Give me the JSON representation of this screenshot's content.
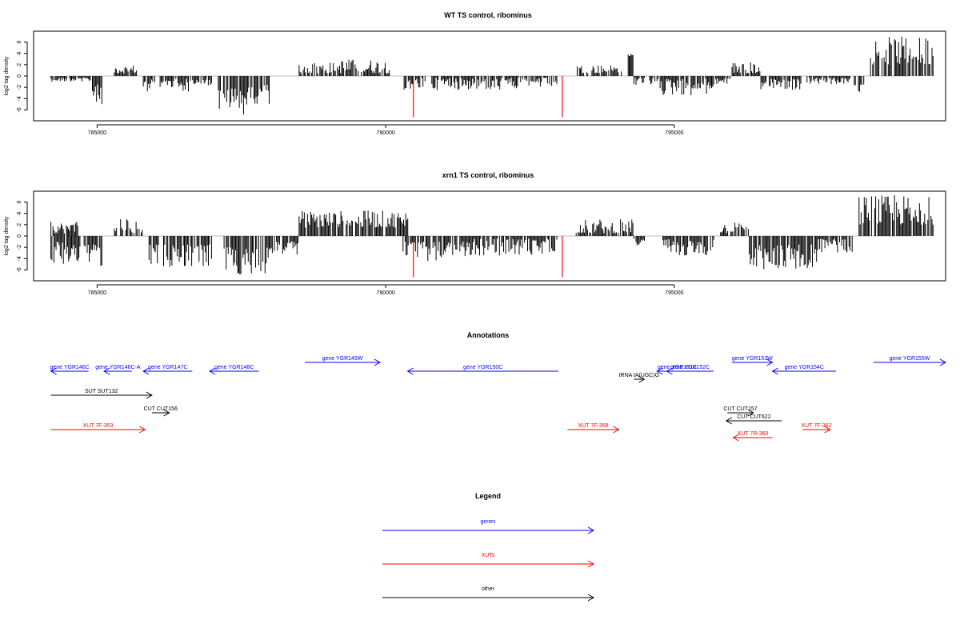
{
  "panel_titles": [
    "WT TS control, ribominus",
    "xrn1 TS control, ribominus"
  ],
  "annotations_title": "Annotations",
  "legend_title": "Legend",
  "chart_data": [
    {
      "type": "bar",
      "title": "WT TS control, ribominus",
      "ylabel": "log2 tag density",
      "xlabel": "",
      "xlim": [
        783900,
        799700
      ],
      "ylim": [
        -7.5,
        7.5
      ],
      "xticks": [
        785000,
        790000,
        795000
      ],
      "yticks": [
        6,
        4,
        2,
        0,
        -2,
        -4,
        -6
      ],
      "baseline_color": "#bbbbbb",
      "bar_color": "#000000",
      "marker_color": "#ff0000",
      "markers": [
        {
          "x": 790480,
          "y": -7.3
        },
        {
          "x": 793060,
          "y": -7.3
        }
      ],
      "segments": [
        {
          "start": 784200,
          "end": 784900,
          "min": 0.3,
          "max": 1.0,
          "sign": -1
        },
        {
          "start": 784900,
          "end": 785100,
          "min": 1.5,
          "max": 5.0,
          "sign": -1
        },
        {
          "start": 785300,
          "end": 785700,
          "min": 0.5,
          "max": 2.0,
          "sign": 1
        },
        {
          "start": 785800,
          "end": 786600,
          "min": 0.5,
          "max": 2.8,
          "sign": -1
        },
        {
          "start": 786600,
          "end": 787000,
          "min": 0.5,
          "max": 1.8,
          "sign": -1
        },
        {
          "start": 787100,
          "end": 787700,
          "min": 2.0,
          "max": 7.0,
          "sign": -1
        },
        {
          "start": 787700,
          "end": 788000,
          "min": 1.5,
          "max": 5.0,
          "sign": -1
        },
        {
          "start": 788500,
          "end": 789200,
          "min": 0.5,
          "max": 2.5,
          "sign": 1
        },
        {
          "start": 789200,
          "end": 790100,
          "min": 0.5,
          "max": 3.0,
          "sign": 1
        },
        {
          "start": 790300,
          "end": 790700,
          "min": 0.3,
          "max": 2.5,
          "sign": -1
        },
        {
          "start": 790800,
          "end": 792500,
          "min": 0.3,
          "max": 2.5,
          "sign": -1
        },
        {
          "start": 792500,
          "end": 793000,
          "min": 0.3,
          "max": 2.0,
          "sign": -1
        },
        {
          "start": 793300,
          "end": 794100,
          "min": 0.5,
          "max": 2.0,
          "sign": 1
        },
        {
          "start": 794200,
          "end": 794300,
          "min": 3.5,
          "max": 3.9,
          "sign": 1
        },
        {
          "start": 794300,
          "end": 794700,
          "min": 0.3,
          "max": 2.0,
          "sign": -1
        },
        {
          "start": 794700,
          "end": 795700,
          "min": 0.5,
          "max": 3.5,
          "sign": -1
        },
        {
          "start": 795700,
          "end": 796000,
          "min": 0.3,
          "max": 1.5,
          "sign": -1
        },
        {
          "start": 796000,
          "end": 796500,
          "min": 0.5,
          "max": 2.5,
          "sign": 1
        },
        {
          "start": 796500,
          "end": 797300,
          "min": 0.5,
          "max": 2.5,
          "sign": -1
        },
        {
          "start": 797300,
          "end": 798100,
          "min": 0.3,
          "max": 1.5,
          "sign": -1
        },
        {
          "start": 798100,
          "end": 798300,
          "min": 1.5,
          "max": 3.0,
          "sign": -1
        },
        {
          "start": 798400,
          "end": 799500,
          "min": 2.0,
          "max": 7.0,
          "sign": 1
        }
      ]
    },
    {
      "type": "bar",
      "title": "xrn1 TS control, ribominus",
      "ylabel": "log2 tag density",
      "xlabel": "",
      "xlim": [
        783900,
        799700
      ],
      "ylim": [
        -7.5,
        7.5
      ],
      "xticks": [
        785000,
        790000,
        795000
      ],
      "yticks": [
        6,
        4,
        2,
        0,
        -2,
        -4,
        -6
      ],
      "baseline_color": "#bbbbbb",
      "bar_color": "#000000",
      "marker_color": "#ff0000",
      "markers": [
        {
          "x": 790480,
          "y": -7.3
        },
        {
          "x": 793060,
          "y": -7.3
        }
      ],
      "segments": [
        {
          "start": 784200,
          "end": 784700,
          "min": 0.5,
          "max": 2.5,
          "sign": 1
        },
        {
          "start": 784200,
          "end": 784900,
          "min": 1.0,
          "max": 5.0,
          "sign": -1
        },
        {
          "start": 784900,
          "end": 785100,
          "min": 1.5,
          "max": 5.5,
          "sign": -1
        },
        {
          "start": 785300,
          "end": 785800,
          "min": 0.5,
          "max": 3.5,
          "sign": 1
        },
        {
          "start": 785900,
          "end": 787000,
          "min": 1.5,
          "max": 5.5,
          "sign": -1
        },
        {
          "start": 787200,
          "end": 788000,
          "min": 2.0,
          "max": 7.0,
          "sign": -1
        },
        {
          "start": 788000,
          "end": 788500,
          "min": 1.0,
          "max": 3.5,
          "sign": -1
        },
        {
          "start": 788500,
          "end": 790400,
          "min": 1.5,
          "max": 4.5,
          "sign": 1
        },
        {
          "start": 790300,
          "end": 791500,
          "min": 1.0,
          "max": 4.5,
          "sign": -1
        },
        {
          "start": 791500,
          "end": 793000,
          "min": 0.5,
          "max": 3.5,
          "sign": -1
        },
        {
          "start": 793300,
          "end": 794300,
          "min": 0.5,
          "max": 3.0,
          "sign": 1
        },
        {
          "start": 794300,
          "end": 794500,
          "min": 0.5,
          "max": 2.0,
          "sign": -1
        },
        {
          "start": 794800,
          "end": 795700,
          "min": 0.5,
          "max": 3.5,
          "sign": -1
        },
        {
          "start": 795800,
          "end": 796300,
          "min": 0.5,
          "max": 2.5,
          "sign": 1
        },
        {
          "start": 796300,
          "end": 797500,
          "min": 1.5,
          "max": 6.0,
          "sign": -1
        },
        {
          "start": 797500,
          "end": 798100,
          "min": 0.5,
          "max": 3.0,
          "sign": -1
        },
        {
          "start": 798200,
          "end": 799500,
          "min": 2.0,
          "max": 7.2,
          "sign": 1
        }
      ]
    }
  ],
  "annotations": {
    "xlim": [
      783900,
      799700
    ],
    "features": [
      {
        "label": "gene YGR146C",
        "start": 784200,
        "end": 784850,
        "strand": "-",
        "row": 0,
        "color": "#0000ff"
      },
      {
        "label": "gene YGR146C-A",
        "start": 785120,
        "end": 785600,
        "strand": "-",
        "row": 0,
        "color": "#0000ff"
      },
      {
        "label": "gene YGR147C",
        "start": 785800,
        "end": 786650,
        "strand": "-",
        "row": 0,
        "color": "#0000ff"
      },
      {
        "label": "gene YGR148C",
        "start": 786950,
        "end": 787800,
        "strand": "-",
        "row": 0,
        "color": "#0000ff"
      },
      {
        "label": "gene YGR149W",
        "start": 788600,
        "end": 789900,
        "strand": "+",
        "row": -1,
        "color": "#0000ff"
      },
      {
        "label": "gene YGR150C",
        "start": 790380,
        "end": 792990,
        "strand": "-",
        "row": 0,
        "color": "#0000ff"
      },
      {
        "label": "gene YGR151C",
        "start": 794700,
        "end": 795400,
        "strand": "-",
        "row": 0,
        "color": "#0000ff"
      },
      {
        "label": "gene YGR152C",
        "start": 794870,
        "end": 795680,
        "strand": "-",
        "row": 0,
        "color": "#0000ff"
      },
      {
        "label": "gene YGR153W",
        "start": 796000,
        "end": 796700,
        "strand": "+",
        "row": -1,
        "color": "#0000ff"
      },
      {
        "label": "gene YGR154C",
        "start": 796700,
        "end": 797800,
        "strand": "-",
        "row": 0,
        "color": "#0000ff"
      },
      {
        "label": "gene YGR155W",
        "start": 798450,
        "end": 799700,
        "strand": "+",
        "row": -1,
        "color": "#0000ff"
      },
      {
        "label": "tRNA tA(UGC)G",
        "start": 794300,
        "end": 794480,
        "strand": "+",
        "row": 1,
        "color": "#000000"
      },
      {
        "label": "SUT SUT132",
        "start": 784200,
        "end": 785950,
        "strand": "+",
        "row": 2,
        "color": "#000000"
      },
      {
        "label": "CUT CUT156",
        "start": 785950,
        "end": 786250,
        "strand": "+",
        "row": 3,
        "color": "#000000"
      },
      {
        "label": "CUT CUT157",
        "start": 795920,
        "end": 796370,
        "strand": "+",
        "row": 3,
        "color": "#000000"
      },
      {
        "label": "CUT CUT622",
        "start": 795900,
        "end": 796860,
        "strand": "-",
        "row": 4,
        "color": "#000000"
      },
      {
        "label": "XUT 7F-353",
        "start": 784200,
        "end": 785830,
        "strand": "+",
        "row": 5,
        "color": "#ff0000"
      },
      {
        "label": "XUT 7F-358",
        "start": 793150,
        "end": 794040,
        "strand": "+",
        "row": 5,
        "color": "#ff0000"
      },
      {
        "label": "XUT 7R-360",
        "start": 796020,
        "end": 796700,
        "strand": "-",
        "row": 6,
        "color": "#ff0000"
      },
      {
        "label": "XUT 7F-362",
        "start": 797220,
        "end": 797700,
        "strand": "+",
        "row": 5,
        "color": "#ff0000"
      }
    ]
  },
  "legend": {
    "items": [
      {
        "label": "genes",
        "color": "#0000ff"
      },
      {
        "label": "XUTs",
        "color": "#ff0000"
      },
      {
        "label": "other",
        "color": "#000000"
      }
    ]
  }
}
